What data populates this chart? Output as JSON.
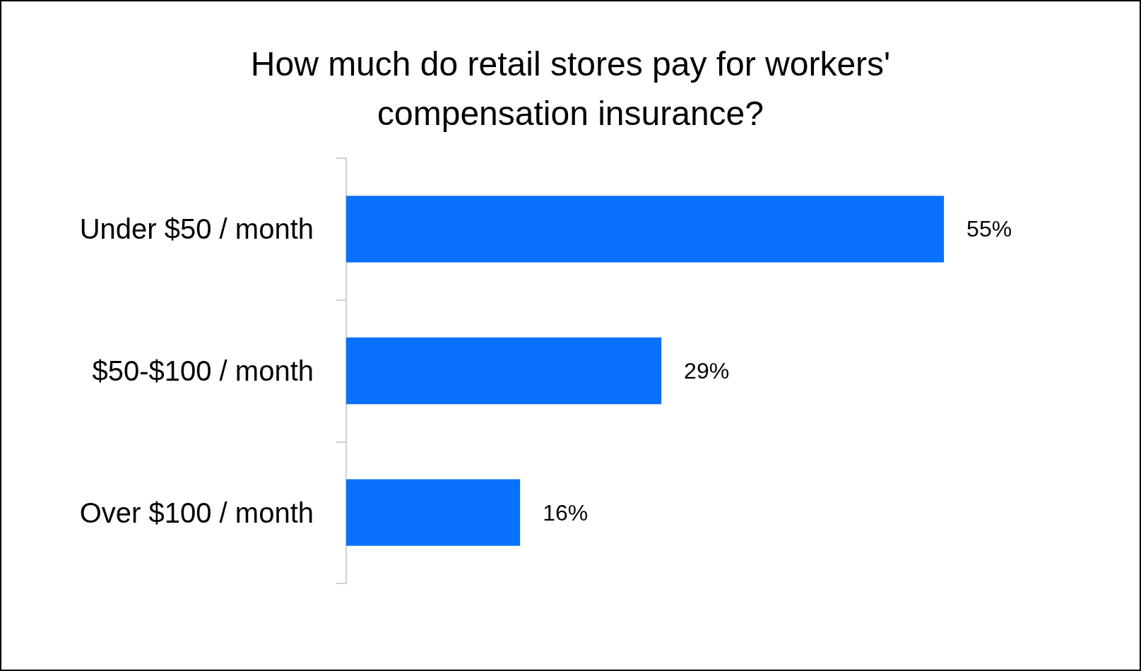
{
  "chart_data": {
    "type": "bar",
    "orientation": "horizontal",
    "title": "How much do retail stores pay for workers' compensation insurance?",
    "categories": [
      "Under $50 / month",
      "$50-$100 / month",
      "Over $100 / month"
    ],
    "values": [
      55,
      29,
      16
    ],
    "value_labels": [
      "55%",
      "29%",
      "16%"
    ],
    "color": "#0971fe"
  }
}
